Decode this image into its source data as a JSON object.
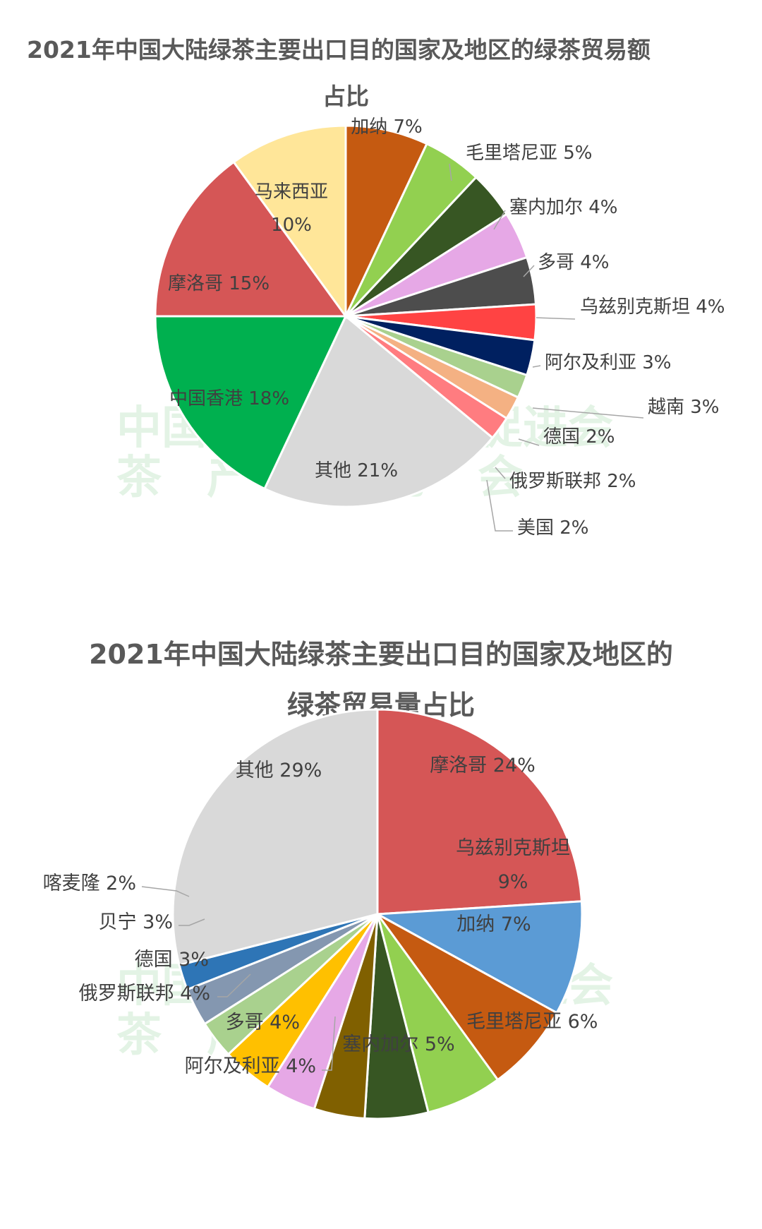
{
  "chart_data": [
    {
      "type": "pie",
      "title": "2021年中国大陆绿茶主要出口目的国家及地区的绿茶贸易额",
      "title_line2": "占比",
      "unit": "%",
      "start": "top",
      "direction": "clockwise",
      "slices": [
        {
          "name": "加纳",
          "value": 7,
          "label": "加纳 7%",
          "color": "#c55a11"
        },
        {
          "name": "毛里塔尼亚",
          "value": 5,
          "label": "毛里塔尼亚 5%",
          "color": "#92d050"
        },
        {
          "name": "塞内加尔",
          "value": 4,
          "label": "塞内加尔 4%",
          "color": "#375623"
        },
        {
          "name": "多哥",
          "value": 4,
          "label": "多哥 4%",
          "color": "#e6a8e6"
        },
        {
          "name": "乌兹别克斯坦",
          "value": 4,
          "label": "乌兹别克斯坦 4%",
          "color": "#4d4d4d"
        },
        {
          "name": "阿尔及利亚",
          "value": 3,
          "label": "阿尔及利亚 3%",
          "color": "#ff4343"
        },
        {
          "name": "越南",
          "value": 3,
          "label": "越南 3%",
          "color": "#002060"
        },
        {
          "name": "德国",
          "value": 2,
          "label": "德国 2%",
          "color": "#a9d18e"
        },
        {
          "name": "俄罗斯联邦",
          "value": 2,
          "label": "俄罗斯联邦 2%",
          "color": "#f4b183"
        },
        {
          "name": "美国",
          "value": 2,
          "label": "美国 2%",
          "color": "#ff7c80"
        },
        {
          "name": "其他",
          "value": 21,
          "label": "其他 21%",
          "color": "#d9d9d9"
        },
        {
          "name": "中国香港",
          "value": 18,
          "label": "中国香港 18%",
          "color": "#00b04f"
        },
        {
          "name": "摩洛哥",
          "value": 15,
          "label": "摩洛哥 15%",
          "color": "#d55656"
        },
        {
          "name": "马来西亚",
          "value": 10,
          "label": "马来西亚",
          "label2": "10%",
          "color": "#ffe699"
        }
      ]
    },
    {
      "type": "pie",
      "title": "2021年中国大陆绿茶主要出口目的国家及地区的",
      "title_line2": "绿茶贸易量占比",
      "unit": "%",
      "start": "top",
      "direction": "clockwise",
      "slices": [
        {
          "name": "摩洛哥",
          "value": 24,
          "label": "摩洛哥 24%",
          "color": "#d55656"
        },
        {
          "name": "乌兹别克斯坦",
          "value": 9,
          "label": "乌兹别克斯坦",
          "label2": "9%",
          "color": "#5b9bd5"
        },
        {
          "name": "加纳",
          "value": 7,
          "label": "加纳 7%",
          "color": "#c55a11"
        },
        {
          "name": "毛里塔尼亚",
          "value": 6,
          "label": "毛里塔尼亚 6%",
          "color": "#92d050"
        },
        {
          "name": "塞内加尔",
          "value": 5,
          "label": "塞内加尔 5%",
          "color": "#375623"
        },
        {
          "name": "阿尔及利亚",
          "value": 4,
          "label": "阿尔及利亚 4%",
          "color": "#806000"
        },
        {
          "name": "多哥",
          "value": 4,
          "label": "多哥 4%",
          "color": "#e6a8e6"
        },
        {
          "name": "俄罗斯联邦",
          "value": 4,
          "label": "俄罗斯联邦 4%",
          "color": "#ffc000"
        },
        {
          "name": "德国",
          "value": 3,
          "label": "德国 3%",
          "color": "#a9d18e"
        },
        {
          "name": "贝宁",
          "value": 3,
          "label": "贝宁 3%",
          "color": "#8497b0"
        },
        {
          "name": "喀麦隆",
          "value": 2,
          "label": "喀麦隆 2%",
          "color": "#2e75b6"
        },
        {
          "name": "其他",
          "value": 29,
          "label": "其他 29%",
          "color": "#d9d9d9"
        }
      ]
    }
  ],
  "watermark": {
    "line1": "中国农业国际合作促进会",
    "line2": "茶　产　业　分　会"
  }
}
